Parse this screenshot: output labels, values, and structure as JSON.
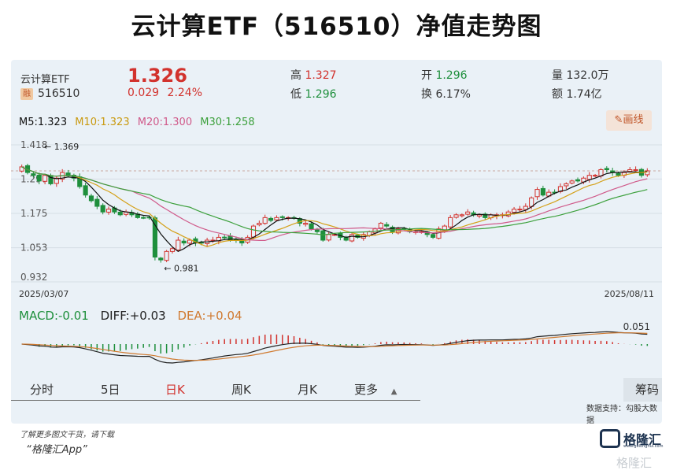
{
  "title": "云计算ETF（516510）净值走势图",
  "ticker": {
    "name": "云计算ETF",
    "badge": "融",
    "code": "516510",
    "price": "1.326",
    "change_abs": "0.029",
    "change_pct": "2.24%"
  },
  "stats": {
    "high_label": "高",
    "high_value": "1.327",
    "low_label": "低",
    "low_value": "1.296",
    "open_label": "开",
    "open_value": "1.296",
    "turnover_label": "换",
    "turnover_value": "6.17%",
    "volume_label": "量",
    "volume_value": "132.0万",
    "amount_label": "额",
    "amount_value": "1.74亿"
  },
  "ma_legend": {
    "m5": "M5:1.323",
    "m10": "M10:1.323",
    "m20": "M20:1.300",
    "m30": "M30:1.258"
  },
  "draw_button": "画线",
  "draw_icon": "pencil-icon",
  "chart_data": [
    {
      "type": "candlestick",
      "title": "",
      "y_ticks": [
        "1.418",
        "1.297",
        "1.175",
        "1.053",
        "0.932"
      ],
      "ylim": [
        0.932,
        1.418
      ],
      "x_start": "2025/03/07",
      "x_end": "2025/08/11",
      "annotations": [
        {
          "text": "1.369",
          "kind": "high"
        },
        {
          "text": "0.981",
          "kind": "low"
        }
      ],
      "close": [
        1.34,
        1.32,
        1.31,
        1.29,
        1.31,
        1.28,
        1.3,
        1.32,
        1.31,
        1.3,
        1.27,
        1.24,
        1.22,
        1.2,
        1.18,
        1.19,
        1.18,
        1.17,
        1.18,
        1.17,
        1.16,
        1.16,
        1.16,
        1.02,
        1.01,
        1.04,
        1.05,
        1.08,
        1.07,
        1.08,
        1.07,
        1.07,
        1.08,
        1.08,
        1.09,
        1.09,
        1.08,
        1.08,
        1.07,
        1.09,
        1.13,
        1.14,
        1.16,
        1.15,
        1.16,
        1.16,
        1.16,
        1.16,
        1.14,
        1.14,
        1.12,
        1.11,
        1.08,
        1.1,
        1.1,
        1.09,
        1.08,
        1.1,
        1.09,
        1.1,
        1.11,
        1.12,
        1.14,
        1.13,
        1.11,
        1.12,
        1.12,
        1.11,
        1.11,
        1.11,
        1.1,
        1.09,
        1.12,
        1.13,
        1.16,
        1.17,
        1.17,
        1.18,
        1.17,
        1.17,
        1.16,
        1.17,
        1.17,
        1.17,
        1.18,
        1.19,
        1.19,
        1.2,
        1.23,
        1.26,
        1.24,
        1.25,
        1.25,
        1.27,
        1.28,
        1.29,
        1.29,
        1.3,
        1.31,
        1.31,
        1.33,
        1.33,
        1.32,
        1.31,
        1.32,
        1.33,
        1.33,
        1.31,
        1.326
      ],
      "ma_series": [
        {
          "name": "M5",
          "color": "#111111"
        },
        {
          "name": "M10",
          "color": "#d4a017"
        },
        {
          "name": "M20",
          "color": "#d05a8a"
        },
        {
          "name": "M30",
          "color": "#3ca03c"
        }
      ]
    },
    {
      "type": "bar",
      "title": "",
      "legend": {
        "macd": "MACD:-0.01",
        "diff": "DIFF:+0.03",
        "dea": "DEA:+0.04"
      },
      "max_label": "0.051"
    }
  ],
  "tabs": [
    "分时",
    "5日",
    "日K",
    "周K",
    "月K",
    "更多"
  ],
  "active_tab": "日K",
  "more_icon": "triangle-up-icon",
  "chips_button": "筹码",
  "data_source": "数据支持：勾股大数据",
  "footer_note": "了解更多图文干货，请下载",
  "footer_app": "“格隆汇App”",
  "brand": {
    "name": "格隆汇",
    "url": "www.gelonghui.com"
  },
  "colors": {
    "up": "#d2322d",
    "down": "#1e8f3c",
    "panel_bg": "#eaf1f7"
  }
}
